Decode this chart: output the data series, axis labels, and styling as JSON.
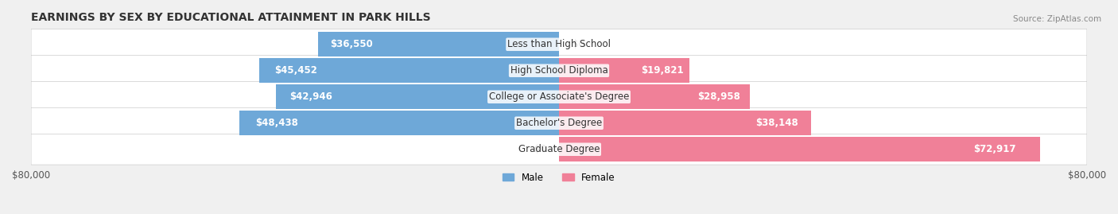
{
  "title": "EARNINGS BY SEX BY EDUCATIONAL ATTAINMENT IN PARK HILLS",
  "source": "Source: ZipAtlas.com",
  "categories": [
    "Less than High School",
    "High School Diploma",
    "College or Associate's Degree",
    "Bachelor's Degree",
    "Graduate Degree"
  ],
  "male_values": [
    36550,
    45452,
    42946,
    48438,
    0
  ],
  "female_values": [
    0,
    19821,
    28958,
    38148,
    72917
  ],
  "male_color": "#6ea8d8",
  "female_color": "#f08098",
  "male_color_grad": "#a8c8e8",
  "female_color_grad": "#f8b8c8",
  "bg_color": "#f0f0f0",
  "row_bg": "#e8e8ec",
  "xlim": 80000,
  "label_fontsize": 8.5,
  "title_fontsize": 10,
  "bar_height": 0.55
}
